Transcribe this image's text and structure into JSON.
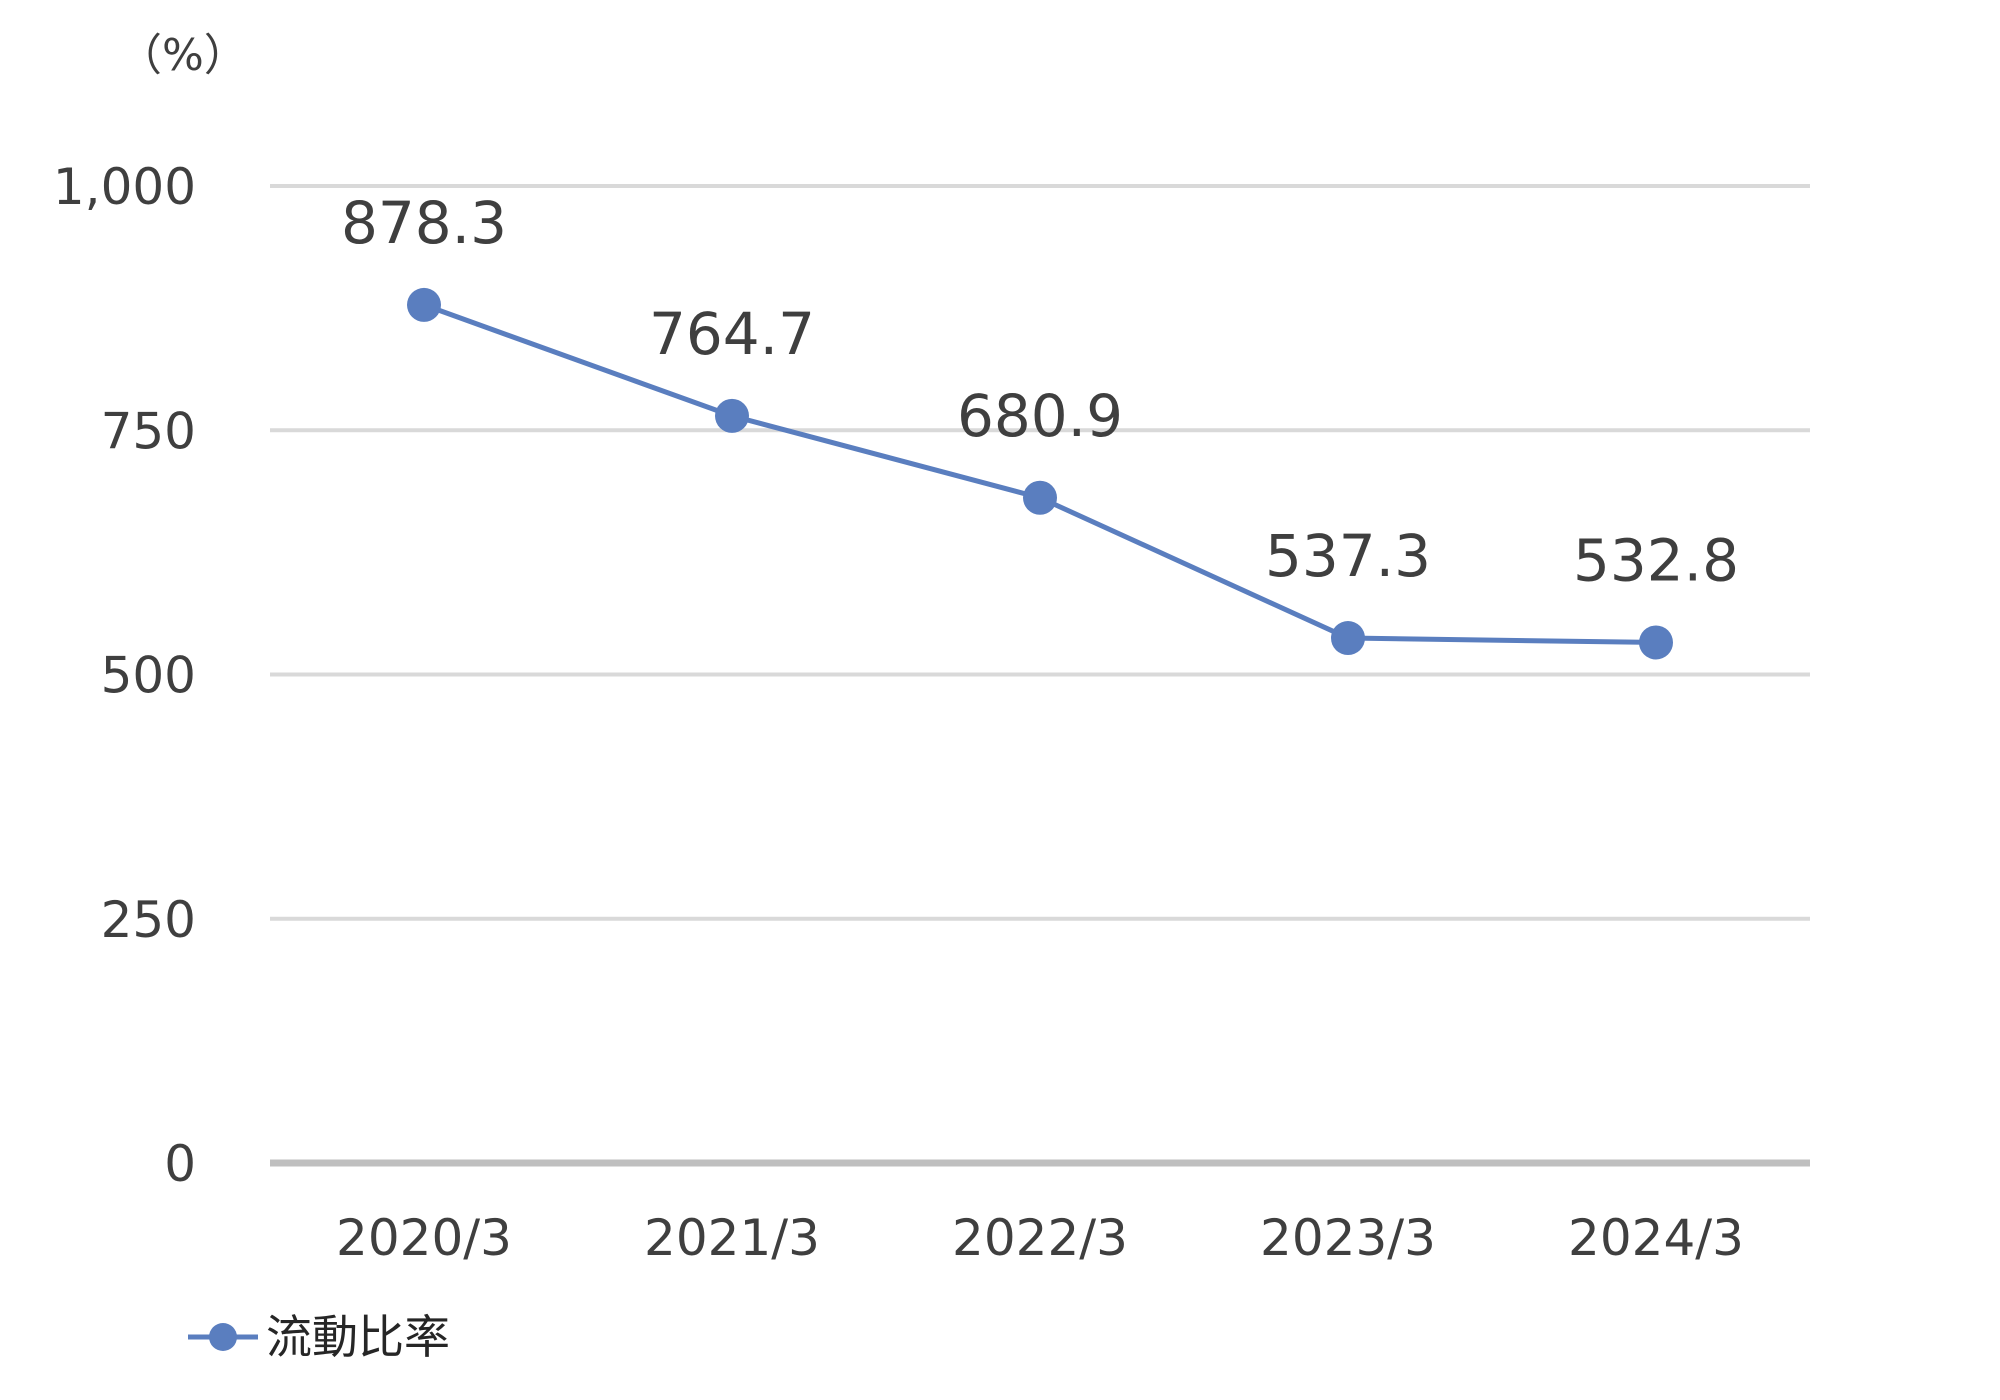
{
  "chart_data": {
    "type": "line",
    "title": "",
    "unit_label": "（%）",
    "categories": [
      "2020/3",
      "2021/3",
      "2022/3",
      "2023/3",
      "2024/3"
    ],
    "series": [
      {
        "name": "流動比率",
        "values": [
          878.3,
          764.7,
          680.9,
          537.3,
          532.8
        ],
        "data_labels": [
          "878.3",
          "764.7",
          "680.9",
          "537.3",
          "532.8"
        ],
        "color": "#5a7ebf"
      }
    ],
    "ylim": [
      0,
      1000
    ],
    "yticks": [
      0,
      250,
      500,
      750,
      1000
    ],
    "ytick_labels": [
      "0",
      "250",
      "500",
      "750",
      "1,000"
    ],
    "grid": true,
    "gridline_color": "#d9d9d9",
    "axis_color": "#bfbfbf",
    "legend_position": "bottom-left"
  }
}
